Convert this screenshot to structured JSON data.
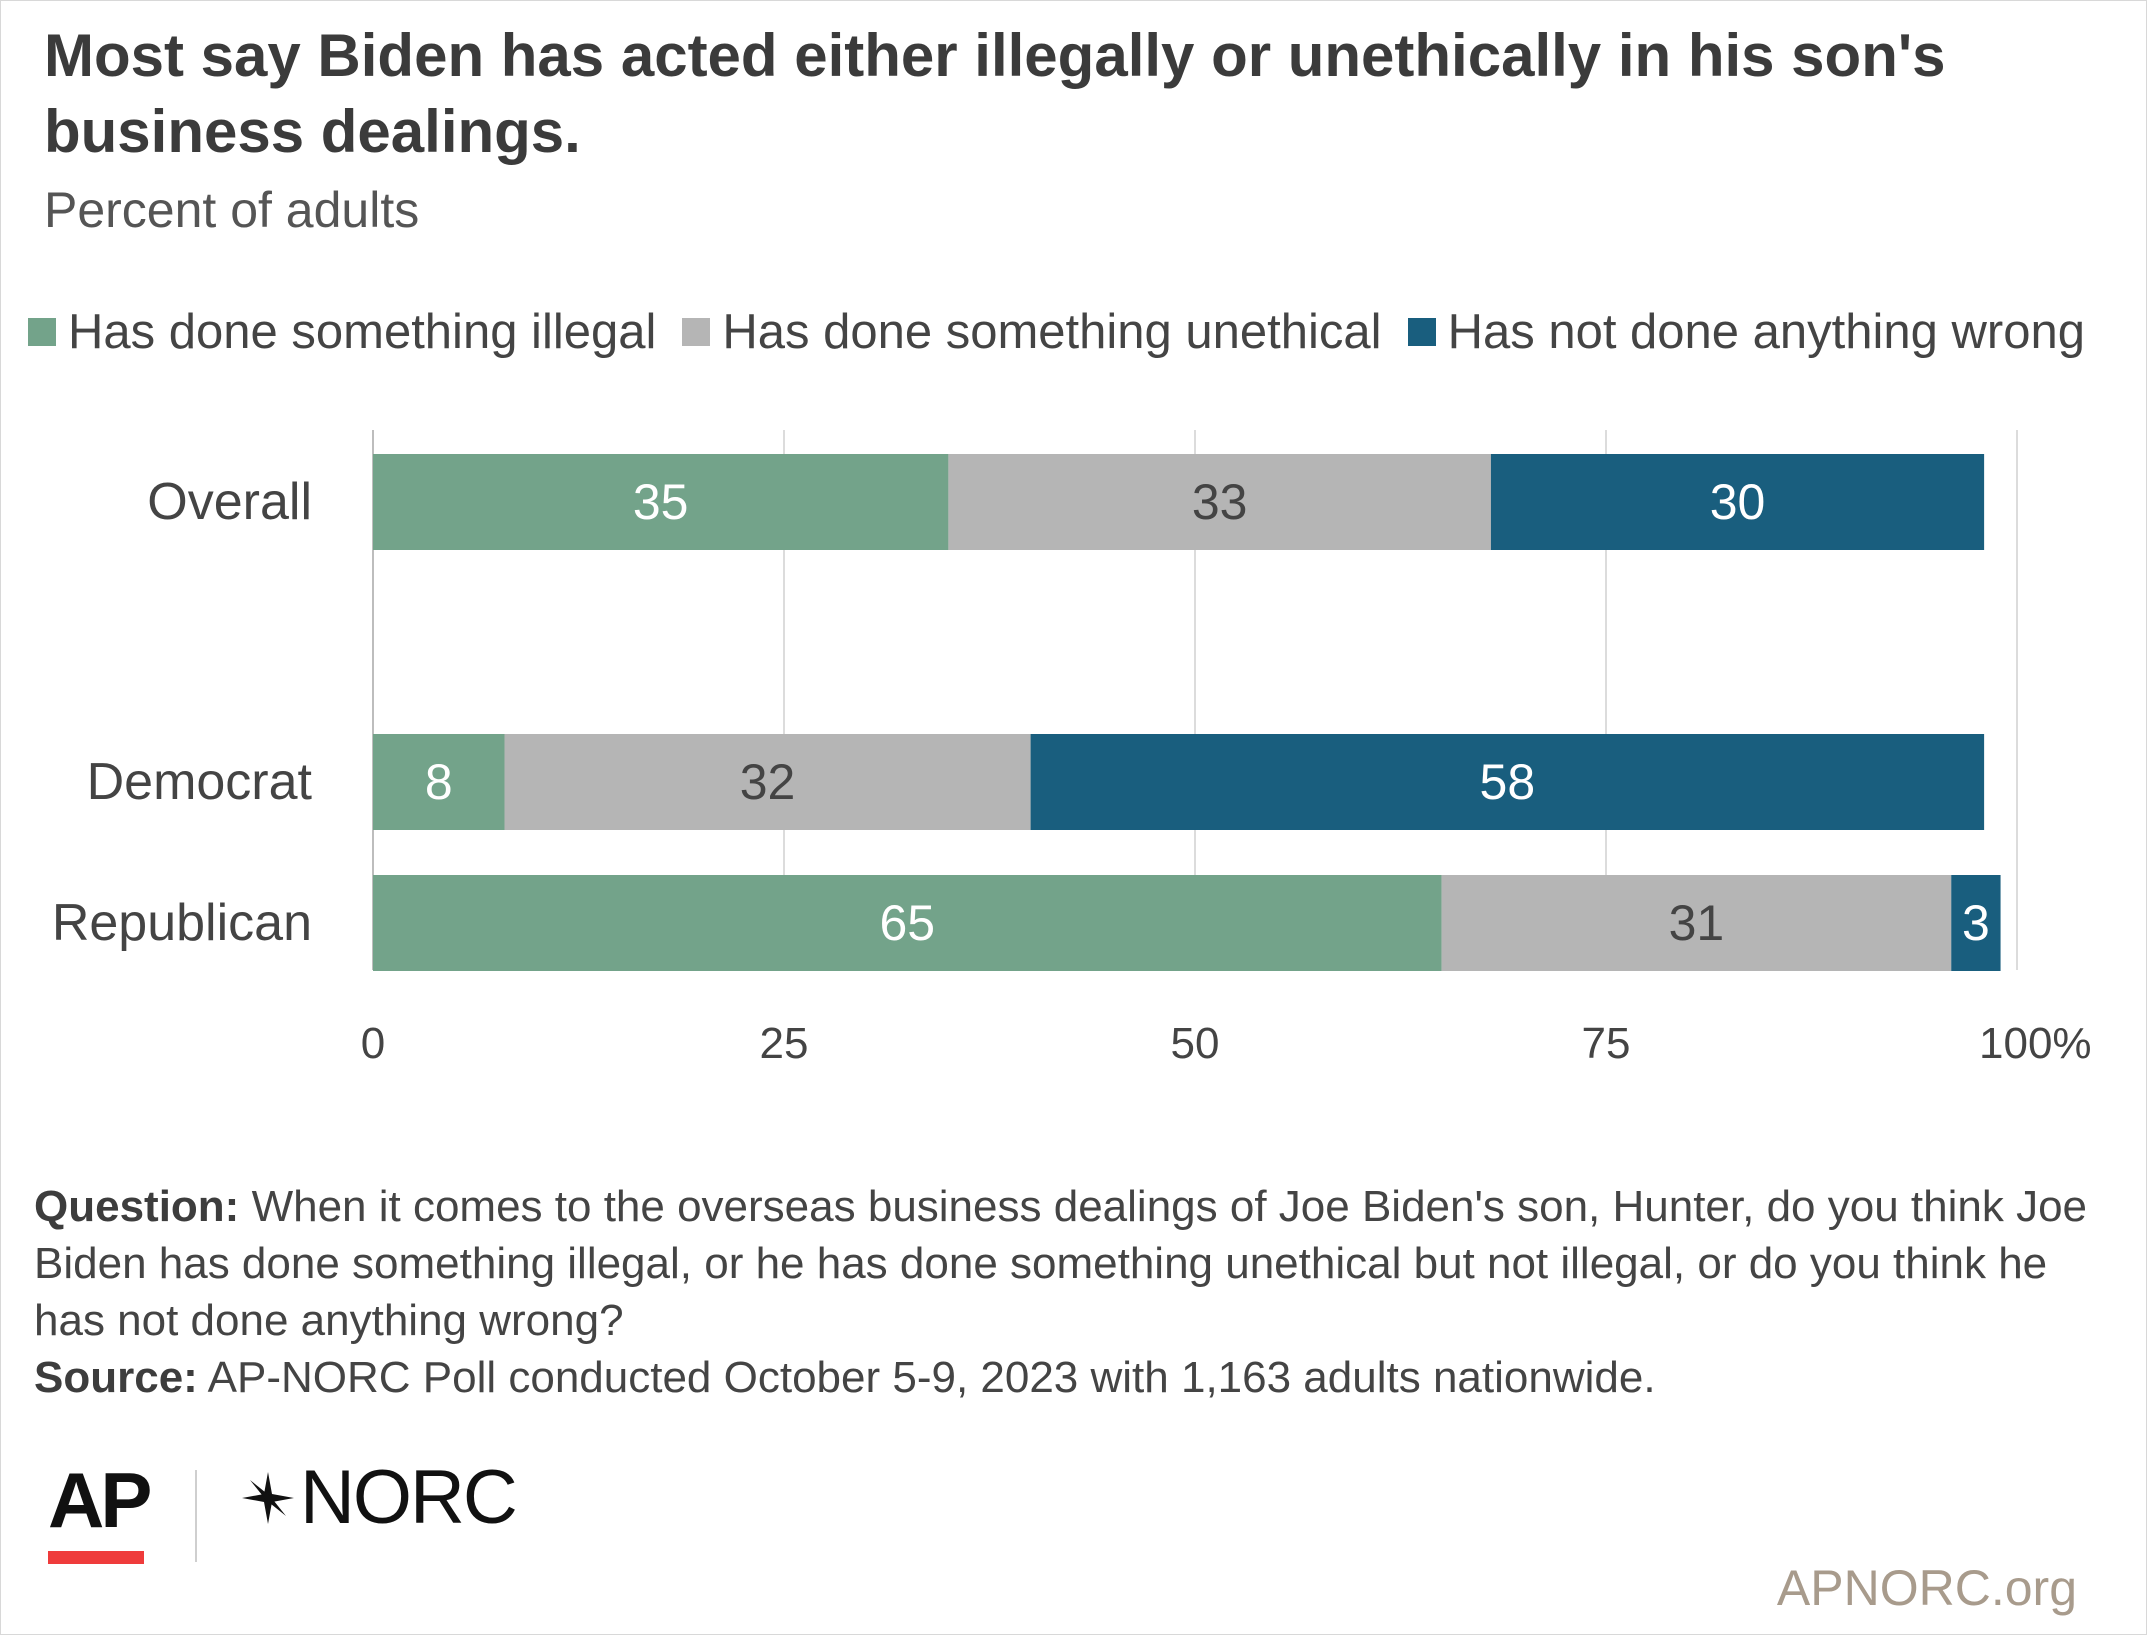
{
  "header": {
    "title": "Most say Biden has acted either illegally or unethically in his son's business dealings.",
    "subtitle": "Percent of adults"
  },
  "legend": [
    {
      "label": "Has done something illegal",
      "color": "#73a38a"
    },
    {
      "label": "Has done something unethical",
      "color": "#b5b5b5"
    },
    {
      "label": "Has not done anything wrong",
      "color": "#195e7e"
    }
  ],
  "chart_data": {
    "type": "bar",
    "orientation": "horizontal",
    "stacked": true,
    "categories": [
      "Overall",
      "Democrat",
      "Republican"
    ],
    "series": [
      {
        "name": "Has done something illegal",
        "values": [
          35,
          8,
          65
        ],
        "color": "#73a38a",
        "label_color": "#ffffff"
      },
      {
        "name": "Has done something unethical",
        "values": [
          33,
          32,
          31
        ],
        "color": "#b5b5b5",
        "label_color": "#444444"
      },
      {
        "name": "Has not done anything wrong",
        "values": [
          30,
          58,
          3
        ],
        "color": "#195e7e",
        "label_color": "#ffffff"
      }
    ],
    "xlim": [
      0,
      100
    ],
    "x_ticks": [
      0,
      25,
      50,
      75,
      100
    ],
    "x_tick_labels": [
      "0",
      "25",
      "50",
      "75",
      "100%"
    ],
    "grid": true,
    "legend_position": "top"
  },
  "notes": {
    "question_label": "Question:",
    "question_text": "When it comes to the overseas business dealings of Joe Biden's son, Hunter, do you think Joe Biden has done something illegal, or he has done something unethical but not illegal, or do you think he has not done anything wrong?",
    "source_label": "Source:",
    "source_text": "AP-NORC Poll conducted October 5-9, 2023 with 1,163 adults nationwide."
  },
  "footer": {
    "ap_logo_text": "AP",
    "norc_logo_text": "NORC",
    "url": "APNORC.org"
  }
}
